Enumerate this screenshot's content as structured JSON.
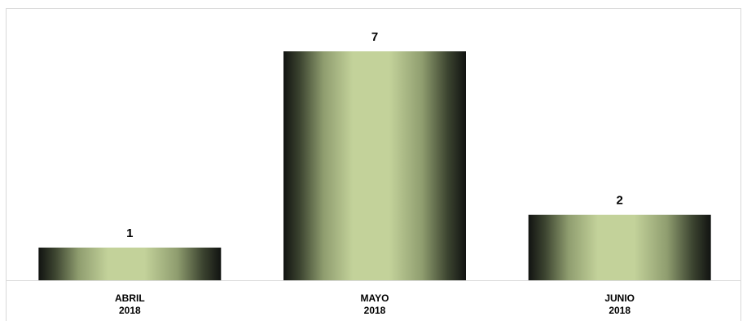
{
  "chart_data": {
    "type": "bar",
    "categories": [
      [
        "ABRIL",
        "2018"
      ],
      [
        "MAYO",
        "2018"
      ],
      [
        "JUNIO",
        "2018"
      ]
    ],
    "values": [
      1,
      7,
      2
    ],
    "data_labels": [
      "1",
      "7",
      "2"
    ],
    "title": "",
    "xlabel": "",
    "ylabel": "",
    "ylim": [
      0,
      7
    ],
    "grid": false,
    "legend": "none",
    "colors": {
      "bar_edge": "#111311",
      "bar_dark": "#3c4430",
      "bar_mid": "#8f9d6f",
      "bar_light": "#c3d29a",
      "axis": "#d9d9d9",
      "text": "#000000"
    }
  }
}
